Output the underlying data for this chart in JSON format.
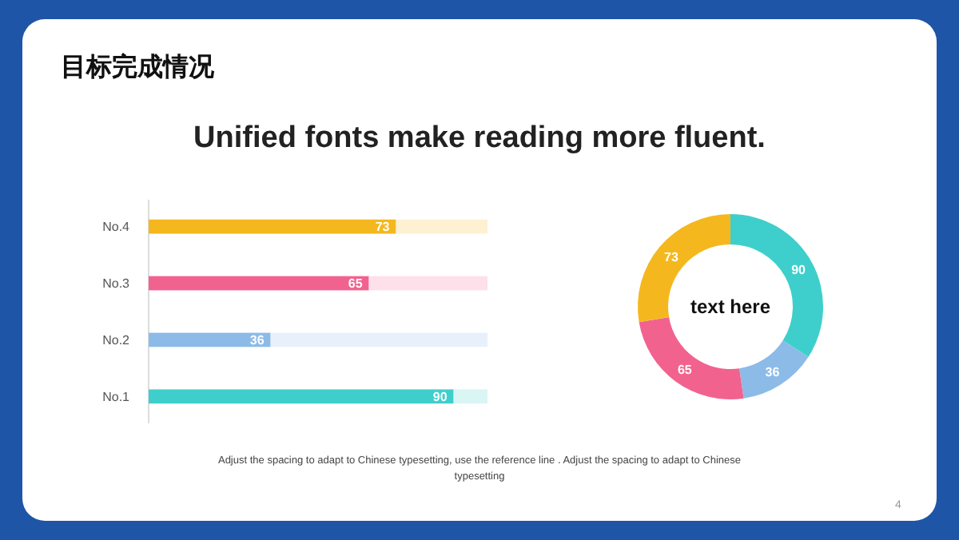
{
  "chart_data": [
    {
      "type": "bar",
      "orientation": "horizontal",
      "stacked": true,
      "title": "目标完成情况",
      "subtitle": "Unified fonts make reading more fluent.",
      "categories": [
        "No.4",
        "No.3",
        "No.2",
        "No.1"
      ],
      "xlim": [
        0,
        100
      ],
      "tick_labels": "y",
      "series": [
        {
          "colors": [
            "#f4b81e",
            "#f2628f",
            "#8cbbe8",
            "#3ecfcc"
          ],
          "values": [
            73,
            65,
            36,
            90
          ],
          "value_labels": [
            "73",
            "65",
            "36",
            "90"
          ]
        },
        {
          "colors": [
            "#fdf1d2",
            "#fde0e9",
            "#e8f1fb",
            "#d9f5f4"
          ],
          "values": [
            27,
            35,
            64,
            10
          ]
        }
      ],
      "annotations": [
        "Adjust the spacing to adapt to Chinese  typesetting, use the reference line . Adjust the spacing to adapt to Chinese  typesetting",
        "4"
      ]
    },
    {
      "type": "donut",
      "categories": [
        null,
        null,
        null,
        null
      ],
      "values": [
        90,
        36,
        65,
        73
      ],
      "colors": [
        "#3ecfcc",
        "#8cbbe8",
        "#f2628f",
        "#f4b81e"
      ],
      "data_labels": true,
      "annotations": [
        "text here"
      ]
    }
  ]
}
